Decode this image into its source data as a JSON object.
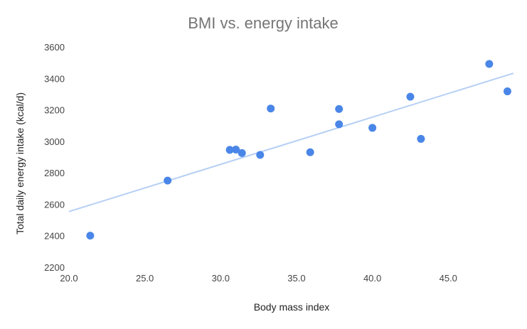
{
  "chart_data": {
    "type": "scatter",
    "title": "BMI vs. energy intake",
    "xlabel": "Body mass index",
    "ylabel": "Total daily energy intake (kcal/d)",
    "xlim": [
      20,
      49.3
    ],
    "ylim": [
      2200,
      3600
    ],
    "x_ticks": [
      20,
      25,
      30,
      35,
      40,
      45
    ],
    "x_tick_labels": [
      "20.0",
      "25.0",
      "30.0",
      "35.0",
      "40.0",
      "45.0"
    ],
    "y_ticks": [
      2200,
      2400,
      2600,
      2800,
      3000,
      3200,
      3400,
      3600
    ],
    "y_tick_labels": [
      "2200",
      "2400",
      "2600",
      "2800",
      "3000",
      "3200",
      "3400",
      "3600"
    ],
    "grid": false,
    "series": [
      {
        "points": [
          [
            21.4,
            2405
          ],
          [
            26.5,
            2755
          ],
          [
            30.6,
            2950
          ],
          [
            31.0,
            2952
          ],
          [
            31.4,
            2930
          ],
          [
            32.6,
            2918
          ],
          [
            33.3,
            3213
          ],
          [
            35.9,
            2935
          ],
          [
            37.8,
            3210
          ],
          [
            37.8,
            3113
          ],
          [
            40.0,
            3090
          ],
          [
            42.5,
            3288
          ],
          [
            43.2,
            3020
          ],
          [
            47.7,
            3496
          ],
          [
            48.9,
            3322
          ]
        ],
        "color": "#4a86e8"
      }
    ],
    "trendline": {
      "x": [
        20,
        49.3
      ],
      "y": [
        2558,
        3437
      ],
      "color": "#b6cff4"
    }
  }
}
